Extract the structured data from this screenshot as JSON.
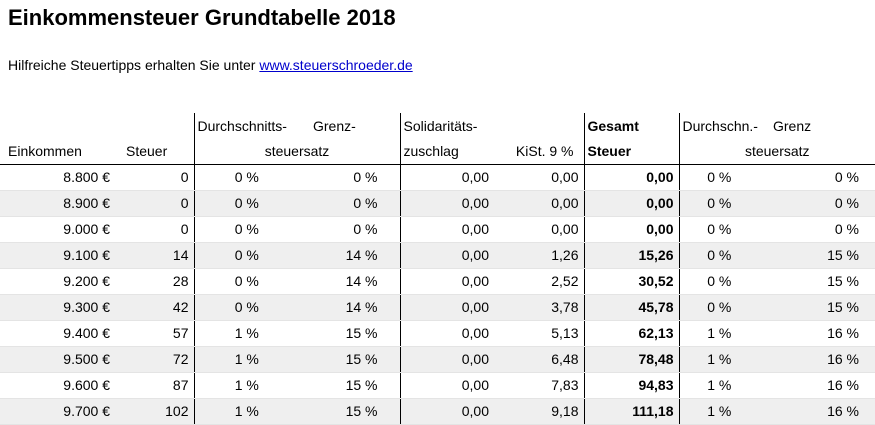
{
  "title": "Einkommensteuer Grundtabelle 2018",
  "intro": {
    "text": "Hilfreiche Steuertipps erhalten Sie unter",
    "link": "www.steuerschroeder.de"
  },
  "table": {
    "header": {
      "durchschnitt_1": "Durchschnitts-",
      "grenz_1": "Grenz-",
      "steuersatz_1": "steuersatz",
      "soli_1": "Solidaritäts-",
      "soli_2": "zuschlag",
      "kist": "KiSt. 9 %",
      "gesamt_1": "Gesamt",
      "gesamt_2": "Steuer",
      "durchschn_2": "Durchschn.-",
      "grenz_2": "Grenz",
      "steuersatz_2": "steuersatz",
      "einkommen": "Einkommen",
      "steuer": "Steuer"
    },
    "rows": [
      {
        "einkommen": "8.800 €",
        "steuer": "0",
        "avg": "0 %",
        "marg": "0 %",
        "soli": "0,00",
        "kist": "0,00",
        "total": "0,00",
        "avg2": "0 %",
        "marg2": "0 %"
      },
      {
        "einkommen": "8.900 €",
        "steuer": "0",
        "avg": "0 %",
        "marg": "0 %",
        "soli": "0,00",
        "kist": "0,00",
        "total": "0,00",
        "avg2": "0 %",
        "marg2": "0 %"
      },
      {
        "einkommen": "9.000 €",
        "steuer": "0",
        "avg": "0 %",
        "marg": "0 %",
        "soli": "0,00",
        "kist": "0,00",
        "total": "0,00",
        "avg2": "0 %",
        "marg2": "0 %"
      },
      {
        "einkommen": "9.100 €",
        "steuer": "14",
        "avg": "0 %",
        "marg": "14 %",
        "soli": "0,00",
        "kist": "1,26",
        "total": "15,26",
        "avg2": "0 %",
        "marg2": "15 %"
      },
      {
        "einkommen": "9.200 €",
        "steuer": "28",
        "avg": "0 %",
        "marg": "14 %",
        "soli": "0,00",
        "kist": "2,52",
        "total": "30,52",
        "avg2": "0 %",
        "marg2": "15 %"
      },
      {
        "einkommen": "9.300 €",
        "steuer": "42",
        "avg": "0 %",
        "marg": "14 %",
        "soli": "0,00",
        "kist": "3,78",
        "total": "45,78",
        "avg2": "0 %",
        "marg2": "15 %"
      },
      {
        "einkommen": "9.400 €",
        "steuer": "57",
        "avg": "1 %",
        "marg": "15 %",
        "soli": "0,00",
        "kist": "5,13",
        "total": "62,13",
        "avg2": "1 %",
        "marg2": "16 %"
      },
      {
        "einkommen": "9.500 €",
        "steuer": "72",
        "avg": "1 %",
        "marg": "15 %",
        "soli": "0,00",
        "kist": "6,48",
        "total": "78,48",
        "avg2": "1 %",
        "marg2": "16 %"
      },
      {
        "einkommen": "9.600 €",
        "steuer": "87",
        "avg": "1 %",
        "marg": "15 %",
        "soli": "0,00",
        "kist": "7,83",
        "total": "94,83",
        "avg2": "1 %",
        "marg2": "16 %"
      },
      {
        "einkommen": "9.700 €",
        "steuer": "102",
        "avg": "1 %",
        "marg": "15 %",
        "soli": "0,00",
        "kist": "9,18",
        "total": "111,18",
        "avg2": "1 %",
        "marg2": "16 %"
      }
    ]
  }
}
